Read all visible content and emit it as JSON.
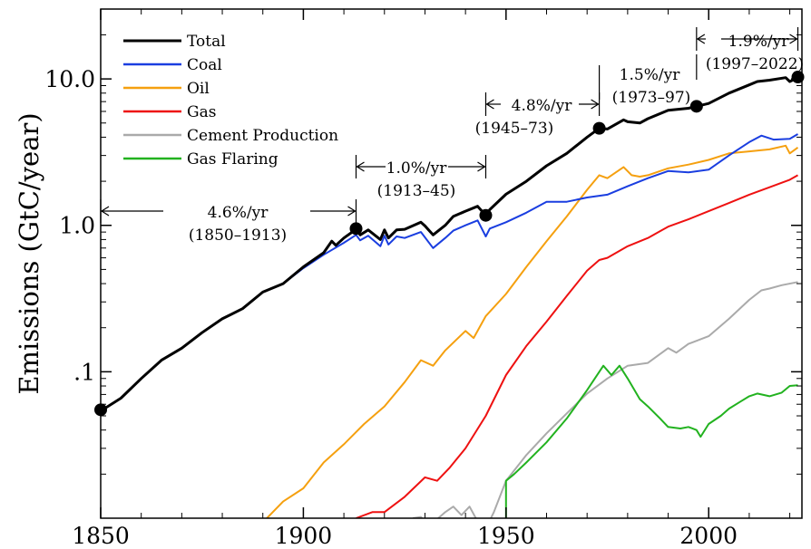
{
  "chart_data": {
    "type": "line",
    "ylabel": "Emissions (GtC/year)",
    "xlabel": "",
    "xlim": [
      1850,
      2023
    ],
    "ylim": [
      0.01,
      30
    ],
    "y_scale": "log",
    "grid": false,
    "legend_position": "top-left",
    "x_ticks": [
      1850,
      1900,
      1950,
      2000
    ],
    "x_tick_labels": [
      "1850",
      "1900",
      "1950",
      "2000"
    ],
    "y_ticks": [
      0.1,
      1,
      10
    ],
    "y_tick_labels": [
      ".1",
      "1.0",
      "10.0"
    ],
    "series": [
      {
        "name": "Total",
        "color": "#000000",
        "width": 3,
        "points": [
          [
            1850,
            0.054
          ],
          [
            1855,
            0.066
          ],
          [
            1860,
            0.09
          ],
          [
            1865,
            0.12
          ],
          [
            1870,
            0.145
          ],
          [
            1875,
            0.185
          ],
          [
            1880,
            0.23
          ],
          [
            1885,
            0.27
          ],
          [
            1890,
            0.35
          ],
          [
            1895,
            0.4
          ],
          [
            1900,
            0.52
          ],
          [
            1905,
            0.65
          ],
          [
            1907,
            0.78
          ],
          [
            1908,
            0.73
          ],
          [
            1910,
            0.82
          ],
          [
            1913,
            0.94
          ],
          [
            1914,
            0.86
          ],
          [
            1916,
            0.93
          ],
          [
            1919,
            0.8
          ],
          [
            1920,
            0.93
          ],
          [
            1921,
            0.82
          ],
          [
            1923,
            0.93
          ],
          [
            1925,
            0.94
          ],
          [
            1929,
            1.05
          ],
          [
            1930,
            0.99
          ],
          [
            1932,
            0.86
          ],
          [
            1935,
            1.0
          ],
          [
            1937,
            1.15
          ],
          [
            1940,
            1.25
          ],
          [
            1943,
            1.35
          ],
          [
            1945,
            1.17
          ],
          [
            1946,
            1.28
          ],
          [
            1950,
            1.63
          ],
          [
            1955,
            2.0
          ],
          [
            1960,
            2.55
          ],
          [
            1965,
            3.1
          ],
          [
            1970,
            4.0
          ],
          [
            1973,
            4.6
          ],
          [
            1975,
            4.55
          ],
          [
            1979,
            5.25
          ],
          [
            1980,
            5.1
          ],
          [
            1983,
            5.0
          ],
          [
            1985,
            5.35
          ],
          [
            1990,
            6.1
          ],
          [
            1995,
            6.3
          ],
          [
            1997,
            6.5
          ],
          [
            2000,
            6.8
          ],
          [
            2005,
            8.0
          ],
          [
            2010,
            9.1
          ],
          [
            2012,
            9.6
          ],
          [
            2015,
            9.8
          ],
          [
            2019,
            10.2
          ],
          [
            2020,
            9.6
          ],
          [
            2022,
            10.2
          ]
        ]
      },
      {
        "name": "Coal",
        "color": "#1a3ee0",
        "width": 2,
        "points": [
          [
            1850,
            0.054
          ],
          [
            1855,
            0.066
          ],
          [
            1860,
            0.09
          ],
          [
            1865,
            0.12
          ],
          [
            1870,
            0.145
          ],
          [
            1875,
            0.185
          ],
          [
            1880,
            0.23
          ],
          [
            1885,
            0.27
          ],
          [
            1890,
            0.35
          ],
          [
            1895,
            0.4
          ],
          [
            1900,
            0.51
          ],
          [
            1905,
            0.63
          ],
          [
            1910,
            0.76
          ],
          [
            1913,
            0.86
          ],
          [
            1914,
            0.79
          ],
          [
            1916,
            0.85
          ],
          [
            1919,
            0.72
          ],
          [
            1920,
            0.85
          ],
          [
            1921,
            0.74
          ],
          [
            1923,
            0.84
          ],
          [
            1925,
            0.82
          ],
          [
            1929,
            0.9
          ],
          [
            1932,
            0.7
          ],
          [
            1935,
            0.82
          ],
          [
            1937,
            0.92
          ],
          [
            1940,
            1.0
          ],
          [
            1943,
            1.08
          ],
          [
            1945,
            0.84
          ],
          [
            1946,
            0.95
          ],
          [
            1950,
            1.05
          ],
          [
            1955,
            1.22
          ],
          [
            1960,
            1.45
          ],
          [
            1965,
            1.45
          ],
          [
            1970,
            1.55
          ],
          [
            1975,
            1.62
          ],
          [
            1980,
            1.85
          ],
          [
            1985,
            2.1
          ],
          [
            1990,
            2.35
          ],
          [
            1995,
            2.3
          ],
          [
            2000,
            2.4
          ],
          [
            2005,
            3.0
          ],
          [
            2010,
            3.7
          ],
          [
            2013,
            4.1
          ],
          [
            2016,
            3.85
          ],
          [
            2020,
            3.9
          ],
          [
            2022,
            4.2
          ]
        ]
      },
      {
        "name": "Oil",
        "color": "#f5a00f",
        "width": 2,
        "points": [
          [
            1891,
            0.01
          ],
          [
            1895,
            0.013
          ],
          [
            1900,
            0.016
          ],
          [
            1905,
            0.024
          ],
          [
            1910,
            0.032
          ],
          [
            1915,
            0.044
          ],
          [
            1920,
            0.058
          ],
          [
            1925,
            0.085
          ],
          [
            1929,
            0.12
          ],
          [
            1932,
            0.11
          ],
          [
            1935,
            0.14
          ],
          [
            1940,
            0.19
          ],
          [
            1942,
            0.17
          ],
          [
            1945,
            0.24
          ],
          [
            1950,
            0.34
          ],
          [
            1955,
            0.52
          ],
          [
            1960,
            0.78
          ],
          [
            1965,
            1.15
          ],
          [
            1970,
            1.75
          ],
          [
            1973,
            2.2
          ],
          [
            1975,
            2.1
          ],
          [
            1979,
            2.5
          ],
          [
            1981,
            2.2
          ],
          [
            1983,
            2.15
          ],
          [
            1985,
            2.2
          ],
          [
            1990,
            2.45
          ],
          [
            1995,
            2.6
          ],
          [
            2000,
            2.8
          ],
          [
            2005,
            3.1
          ],
          [
            2010,
            3.2
          ],
          [
            2015,
            3.3
          ],
          [
            2019,
            3.5
          ],
          [
            2020,
            3.1
          ],
          [
            2022,
            3.4
          ]
        ]
      },
      {
        "name": "Gas",
        "color": "#ee1111",
        "width": 2,
        "points": [
          [
            1913,
            0.01
          ],
          [
            1917,
            0.011
          ],
          [
            1920,
            0.011
          ],
          [
            1925,
            0.014
          ],
          [
            1930,
            0.019
          ],
          [
            1933,
            0.018
          ],
          [
            1936,
            0.022
          ],
          [
            1940,
            0.03
          ],
          [
            1945,
            0.05
          ],
          [
            1950,
            0.095
          ],
          [
            1955,
            0.15
          ],
          [
            1960,
            0.22
          ],
          [
            1965,
            0.33
          ],
          [
            1970,
            0.49
          ],
          [
            1973,
            0.58
          ],
          [
            1975,
            0.6
          ],
          [
            1980,
            0.72
          ],
          [
            1985,
            0.82
          ],
          [
            1990,
            0.98
          ],
          [
            1995,
            1.1
          ],
          [
            2000,
            1.25
          ],
          [
            2005,
            1.42
          ],
          [
            2010,
            1.62
          ],
          [
            2015,
            1.82
          ],
          [
            2020,
            2.05
          ],
          [
            2022,
            2.2
          ]
        ]
      },
      {
        "name": "Cement Production",
        "color": "#aaaaaa",
        "width": 2,
        "points": [
          [
            1927,
            0.01
          ],
          [
            1929,
            0.0102
          ],
          [
            1931,
            0.0088
          ],
          [
            1935,
            0.011
          ],
          [
            1937,
            0.012
          ],
          [
            1939,
            0.0105
          ],
          [
            1941,
            0.012
          ],
          [
            1943,
            0.0095
          ],
          [
            1945,
            0.0085
          ],
          [
            1947,
            0.011
          ],
          [
            1950,
            0.018
          ],
          [
            1955,
            0.027
          ],
          [
            1960,
            0.038
          ],
          [
            1965,
            0.052
          ],
          [
            1970,
            0.071
          ],
          [
            1975,
            0.09
          ],
          [
            1980,
            0.11
          ],
          [
            1985,
            0.115
          ],
          [
            1990,
            0.145
          ],
          [
            1992,
            0.135
          ],
          [
            1995,
            0.155
          ],
          [
            2000,
            0.175
          ],
          [
            2005,
            0.23
          ],
          [
            2010,
            0.31
          ],
          [
            2013,
            0.36
          ],
          [
            2015,
            0.37
          ],
          [
            2018,
            0.39
          ],
          [
            2022,
            0.41
          ]
        ]
      },
      {
        "name": "Gas Flaring",
        "color": "#22b21f",
        "width": 2,
        "points": [
          [
            1950,
            0.01
          ],
          [
            1950,
            0.018
          ],
          [
            1952,
            0.02
          ],
          [
            1955,
            0.024
          ],
          [
            1960,
            0.033
          ],
          [
            1965,
            0.048
          ],
          [
            1970,
            0.075
          ],
          [
            1973,
            0.1
          ],
          [
            1974,
            0.11
          ],
          [
            1976,
            0.095
          ],
          [
            1978,
            0.11
          ],
          [
            1980,
            0.09
          ],
          [
            1983,
            0.065
          ],
          [
            1985,
            0.058
          ],
          [
            1988,
            0.048
          ],
          [
            1990,
            0.042
          ],
          [
            1993,
            0.041
          ],
          [
            1995,
            0.042
          ],
          [
            1997,
            0.04
          ],
          [
            1998,
            0.036
          ],
          [
            2000,
            0.044
          ],
          [
            2003,
            0.05
          ],
          [
            2005,
            0.056
          ],
          [
            2008,
            0.063
          ],
          [
            2010,
            0.068
          ],
          [
            2012,
            0.071
          ],
          [
            2015,
            0.068
          ],
          [
            2018,
            0.072
          ],
          [
            2020,
            0.08
          ],
          [
            2022,
            0.081
          ]
        ]
      }
    ],
    "markers": [
      [
        1850,
        0.055
      ],
      [
        1913,
        0.95
      ],
      [
        1945,
        1.17
      ],
      [
        1973,
        4.6
      ],
      [
        1997,
        6.5
      ],
      [
        2022,
        10.3
      ]
    ],
    "annotations": [
      {
        "rate": "4.6%/yr",
        "period": "(1850–1913)",
        "from": 1850,
        "to": 1913
      },
      {
        "rate": "1.0%/yr",
        "period": "(1913–45)",
        "from": 1913,
        "to": 1945
      },
      {
        "rate": "4.8%/yr",
        "period": "(1945–73)",
        "from": 1945,
        "to": 1973
      },
      {
        "rate": "1.5%/yr",
        "period": "(1973–97)",
        "from": 1973,
        "to": 1997
      },
      {
        "rate": "1.9%/yr",
        "period": "(1997–2022)",
        "from": 1997,
        "to": 2022
      }
    ]
  }
}
